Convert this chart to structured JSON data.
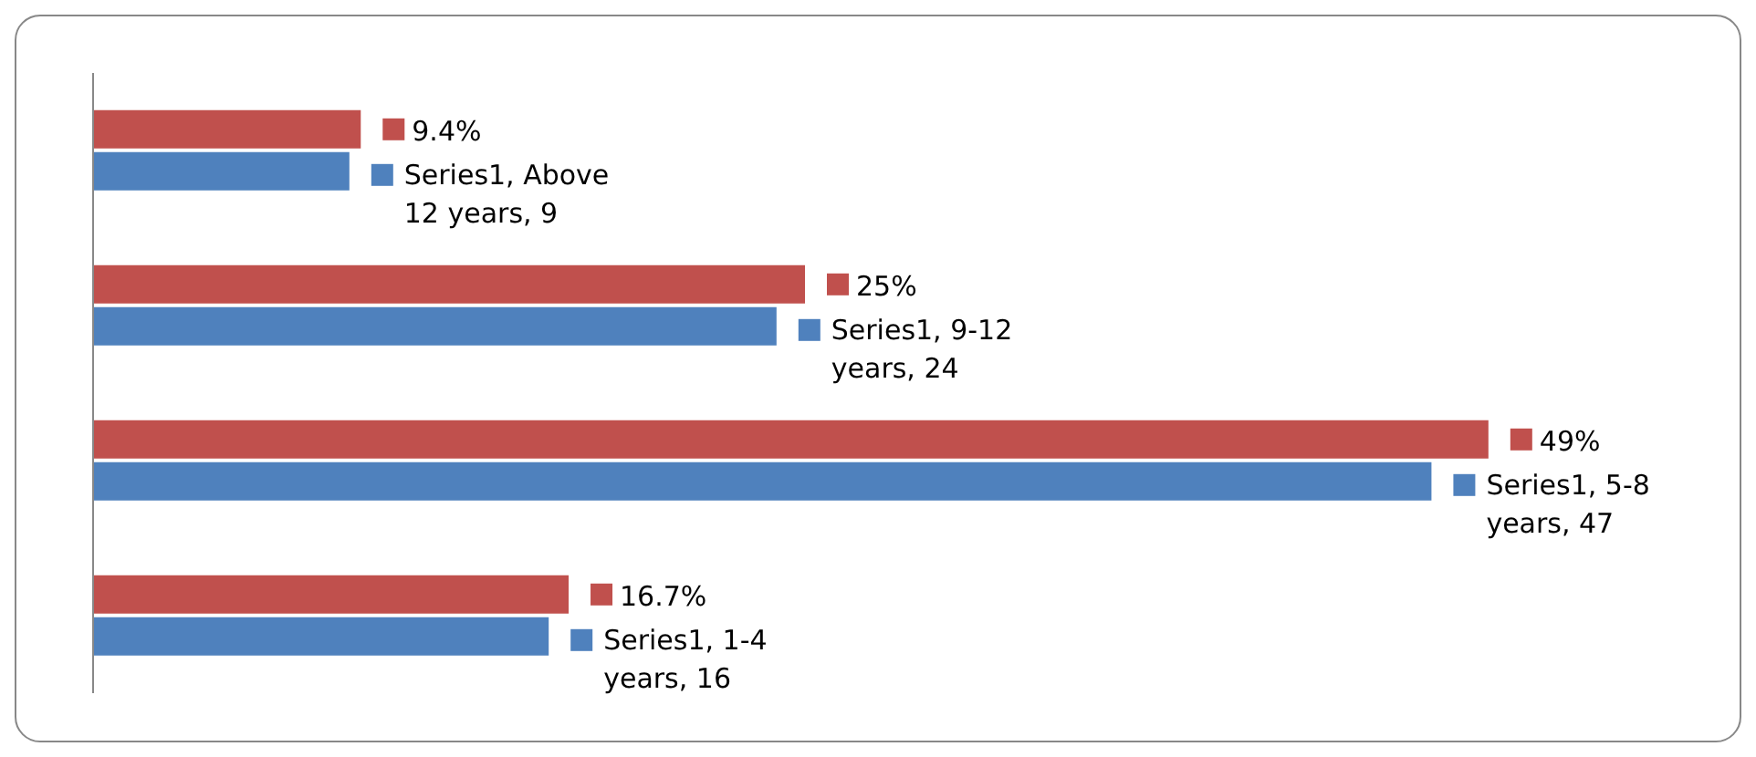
{
  "chart_data": {
    "type": "bar",
    "orientation": "horizontal",
    "categories": [
      null,
      null,
      null,
      null
    ],
    "series": [
      {
        "color": "#c0504d",
        "values": [
          9.4,
          25,
          49,
          16.7
        ],
        "value_labels": [
          "9.4%",
          "25%",
          "49%",
          "16.7%"
        ]
      },
      {
        "color": "#4f81bd",
        "values": [
          9,
          24,
          47,
          16
        ],
        "value_labels": [
          "Series1, Above 12 years, 9",
          "Series1, 9-12 years, 24",
          "Series1, 5-8 years, 47",
          "Series1, 1-4 years, 16"
        ]
      }
    ]
  }
}
